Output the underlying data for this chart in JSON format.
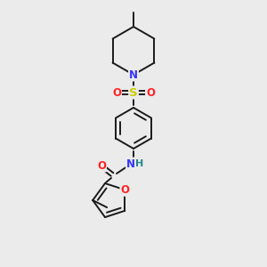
{
  "background_color": "#ebebeb",
  "bond_color": "#1a1a1a",
  "atom_colors": {
    "N": "#3333ff",
    "O": "#ff2222",
    "S": "#cccc00",
    "H": "#228888"
  },
  "figsize": [
    3.0,
    3.0
  ],
  "dpi": 100
}
